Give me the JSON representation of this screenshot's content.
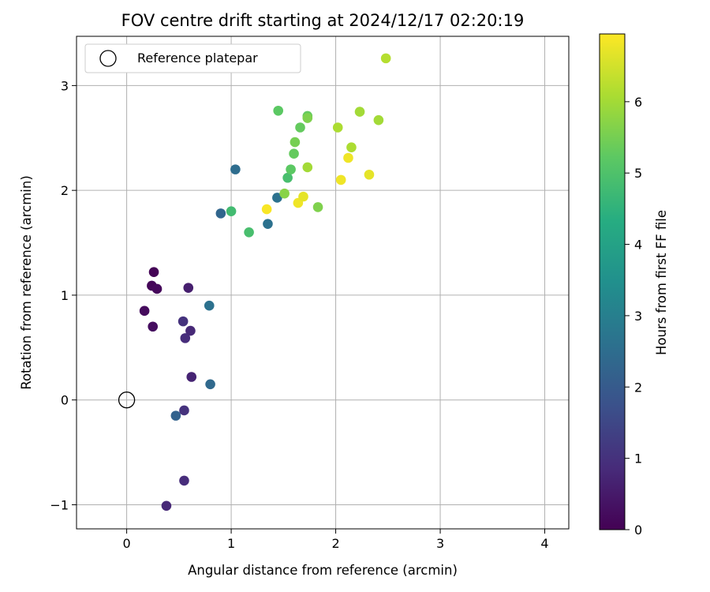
{
  "chart_data": {
    "type": "scatter",
    "title": "FOV centre drift starting at 2024/12/17 02:20:19",
    "xlabel": "Angular distance from reference (arcmin)",
    "ylabel": "Rotation from reference (arcmin)",
    "xlim": [
      -0.48,
      4.23
    ],
    "ylim": [
      -1.23,
      3.47
    ],
    "x_ticks": [
      0,
      1,
      2,
      3,
      4
    ],
    "x_tick_labels": [
      "0",
      "1",
      "2",
      "3",
      "4"
    ],
    "y_ticks": [
      -1,
      0,
      1,
      2,
      3
    ],
    "y_tick_labels": [
      "−1",
      "0",
      "1",
      "2",
      "3"
    ],
    "grid": true,
    "legend": {
      "placement": "upper-left",
      "entries": [
        "Reference platepar"
      ]
    },
    "reference_point": {
      "label": "Reference platepar",
      "x": 0,
      "y": 0
    },
    "colorbar": {
      "label": "Hours from first FF file",
      "colormap": "viridis",
      "range": [
        0,
        6.95
      ],
      "ticks": [
        0,
        1,
        2,
        3,
        4,
        5,
        6
      ],
      "tick_labels": [
        "0",
        "1",
        "2",
        "3",
        "4",
        "5",
        "6"
      ]
    },
    "points": [
      {
        "x": 0.26,
        "y": 1.22,
        "hours": 0.05
      },
      {
        "x": 0.24,
        "y": 1.09,
        "hours": 0.1
      },
      {
        "x": 0.29,
        "y": 1.06,
        "hours": 0.15
      },
      {
        "x": 0.17,
        "y": 0.85,
        "hours": 0.2
      },
      {
        "x": 0.25,
        "y": 0.7,
        "hours": 0.25
      },
      {
        "x": 0.59,
        "y": 1.07,
        "hours": 0.6
      },
      {
        "x": 0.62,
        "y": 0.22,
        "hours": 0.7
      },
      {
        "x": 0.61,
        "y": 0.66,
        "hours": 0.8
      },
      {
        "x": 0.56,
        "y": 0.59,
        "hours": 0.9
      },
      {
        "x": 0.54,
        "y": 0.75,
        "hours": 1.0
      },
      {
        "x": 0.55,
        "y": -0.1,
        "hours": 1.0
      },
      {
        "x": 0.55,
        "y": -0.77,
        "hours": 0.9
      },
      {
        "x": 0.38,
        "y": -1.01,
        "hours": 0.8
      },
      {
        "x": 0.47,
        "y": -0.15,
        "hours": 2.2
      },
      {
        "x": 0.8,
        "y": 0.15,
        "hours": 2.4
      },
      {
        "x": 0.79,
        "y": 0.9,
        "hours": 2.6
      },
      {
        "x": 0.9,
        "y": 1.78,
        "hours": 2.3
      },
      {
        "x": 1.04,
        "y": 2.2,
        "hours": 2.5
      },
      {
        "x": 1.35,
        "y": 1.68,
        "hours": 2.6
      },
      {
        "x": 1.44,
        "y": 1.93,
        "hours": 2.6
      },
      {
        "x": 1.0,
        "y": 1.8,
        "hours": 4.8
      },
      {
        "x": 1.17,
        "y": 1.6,
        "hours": 4.9
      },
      {
        "x": 1.54,
        "y": 2.12,
        "hours": 4.9
      },
      {
        "x": 1.57,
        "y": 2.2,
        "hours": 5.2
      },
      {
        "x": 1.6,
        "y": 2.35,
        "hours": 5.3
      },
      {
        "x": 1.61,
        "y": 2.46,
        "hours": 5.5
      },
      {
        "x": 1.66,
        "y": 2.6,
        "hours": 5.3
      },
      {
        "x": 1.45,
        "y": 2.76,
        "hours": 5.2
      },
      {
        "x": 1.73,
        "y": 2.71,
        "hours": 5.3
      },
      {
        "x": 1.73,
        "y": 2.69,
        "hours": 5.6
      },
      {
        "x": 1.51,
        "y": 1.97,
        "hours": 5.7
      },
      {
        "x": 1.73,
        "y": 2.22,
        "hours": 6.0
      },
      {
        "x": 1.83,
        "y": 1.84,
        "hours": 5.6
      },
      {
        "x": 2.02,
        "y": 2.6,
        "hours": 6.1
      },
      {
        "x": 2.15,
        "y": 2.41,
        "hours": 6.1
      },
      {
        "x": 2.23,
        "y": 2.75,
        "hours": 6.0
      },
      {
        "x": 2.41,
        "y": 2.67,
        "hours": 6.0
      },
      {
        "x": 2.48,
        "y": 3.26,
        "hours": 6.2
      },
      {
        "x": 1.34,
        "y": 1.82,
        "hours": 6.9
      },
      {
        "x": 1.64,
        "y": 1.88,
        "hours": 6.8
      },
      {
        "x": 1.69,
        "y": 1.94,
        "hours": 6.7
      },
      {
        "x": 2.05,
        "y": 2.1,
        "hours": 6.8
      },
      {
        "x": 2.12,
        "y": 2.31,
        "hours": 6.8
      },
      {
        "x": 2.32,
        "y": 2.15,
        "hours": 6.7
      }
    ]
  }
}
